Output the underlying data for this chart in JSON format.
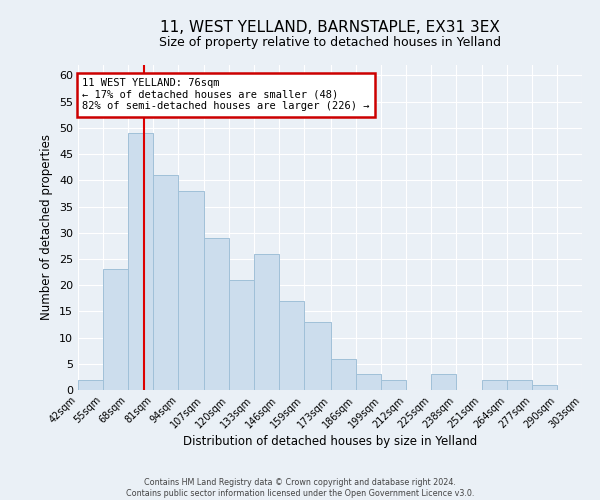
{
  "title": "11, WEST YELLAND, BARNSTAPLE, EX31 3EX",
  "subtitle": "Size of property relative to detached houses in Yelland",
  "xlabel": "Distribution of detached houses by size in Yelland",
  "ylabel": "Number of detached properties",
  "bin_labels": [
    "42sqm",
    "55sqm",
    "68sqm",
    "81sqm",
    "94sqm",
    "107sqm",
    "120sqm",
    "133sqm",
    "146sqm",
    "159sqm",
    "173sqm",
    "186sqm",
    "199sqm",
    "212sqm",
    "225sqm",
    "238sqm",
    "251sqm",
    "264sqm",
    "277sqm",
    "290sqm",
    "303sqm"
  ],
  "bar_values": [
    2,
    23,
    49,
    41,
    38,
    29,
    21,
    26,
    17,
    13,
    6,
    3,
    2,
    0,
    3,
    0,
    2,
    2,
    1,
    0
  ],
  "bin_edges": [
    42,
    55,
    68,
    81,
    94,
    107,
    120,
    133,
    146,
    159,
    173,
    186,
    199,
    212,
    225,
    238,
    251,
    264,
    277,
    290,
    303
  ],
  "bar_color": "#ccdded",
  "bar_edgecolor": "#a0c0d8",
  "vline_x": 76,
  "vline_color": "#dd0000",
  "annotation_text": "11 WEST YELLAND: 76sqm\n← 17% of detached houses are smaller (48)\n82% of semi-detached houses are larger (226) →",
  "annotation_boxcolor": "#ffffff",
  "annotation_edgecolor": "#cc0000",
  "ylim": [
    0,
    62
  ],
  "yticks": [
    0,
    5,
    10,
    15,
    20,
    25,
    30,
    35,
    40,
    45,
    50,
    55,
    60
  ],
  "footer1": "Contains HM Land Registry data © Crown copyright and database right 2024.",
  "footer2": "Contains public sector information licensed under the Open Government Licence v3.0.",
  "bg_color": "#eaf0f6",
  "grid_color": "#ffffff",
  "title_fontsize": 11,
  "subtitle_fontsize": 9
}
